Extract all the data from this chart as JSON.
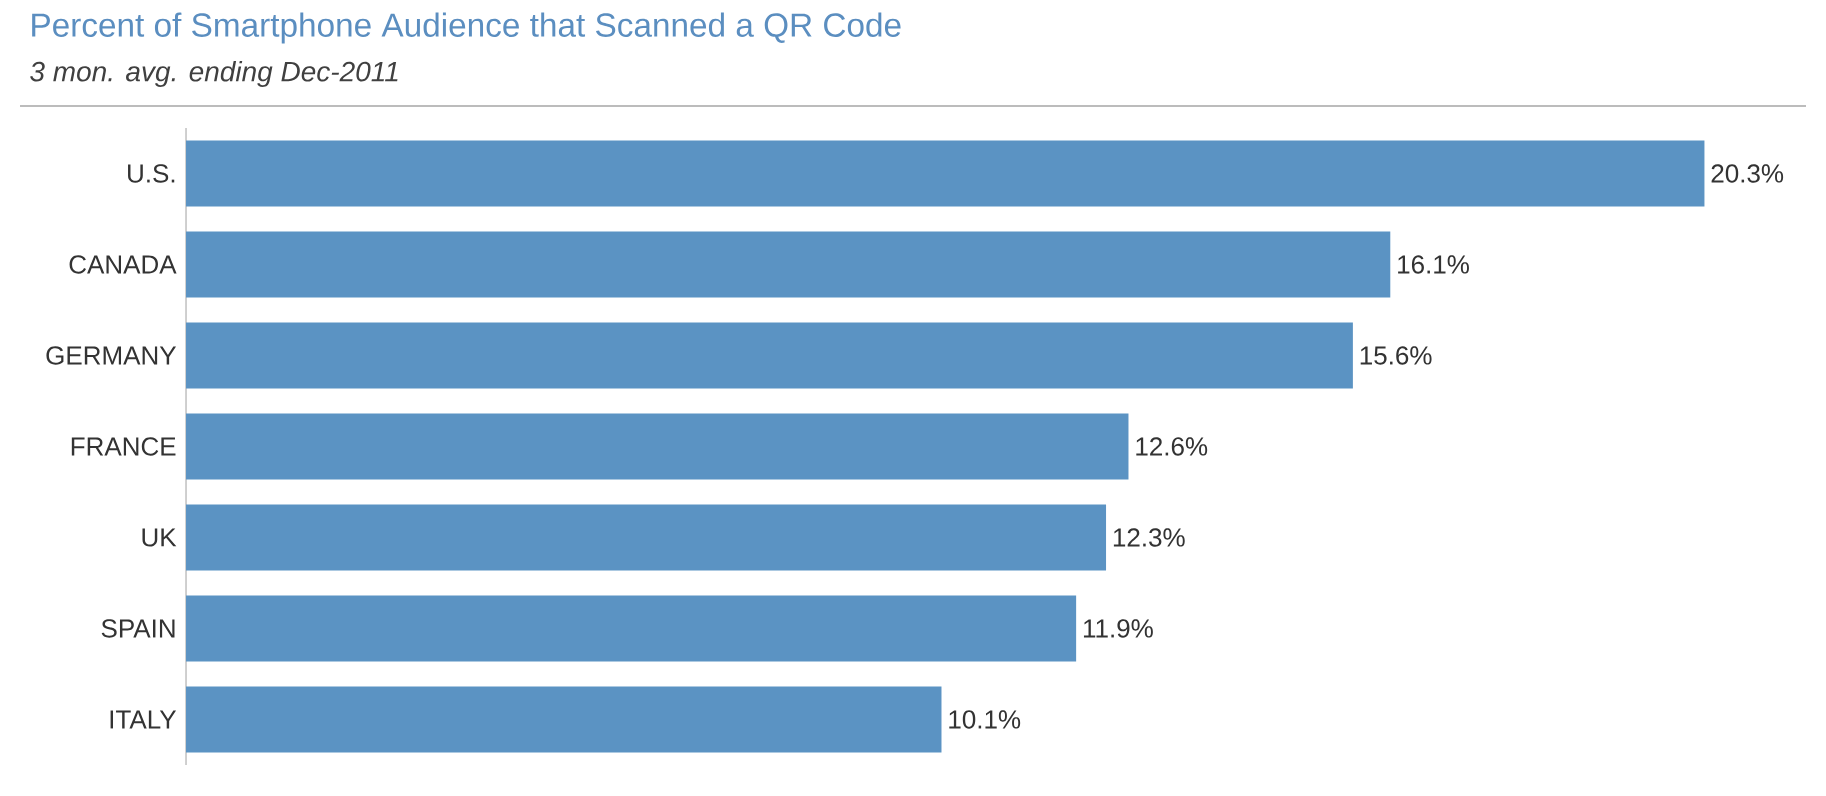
{
  "chart_data": {
    "type": "bar",
    "orientation": "horizontal",
    "title": "Percent of Smartphone Audience that Scanned a QR Code",
    "subtitle": "3 mon. avg. ending Dec-2011",
    "categories": [
      "U.S.",
      "CANADA",
      "GERMANY",
      "FRANCE",
      "UK",
      "SPAIN",
      "ITALY"
    ],
    "values": [
      20.3,
      16.1,
      15.6,
      12.6,
      12.3,
      11.9,
      10.1
    ],
    "value_labels": [
      "20.3%",
      "16.1%",
      "15.6%",
      "12.6%",
      "12.3%",
      "11.9%",
      "10.1%"
    ],
    "color": "#5b93c3",
    "tick_labels": "y",
    "grid": false
  }
}
